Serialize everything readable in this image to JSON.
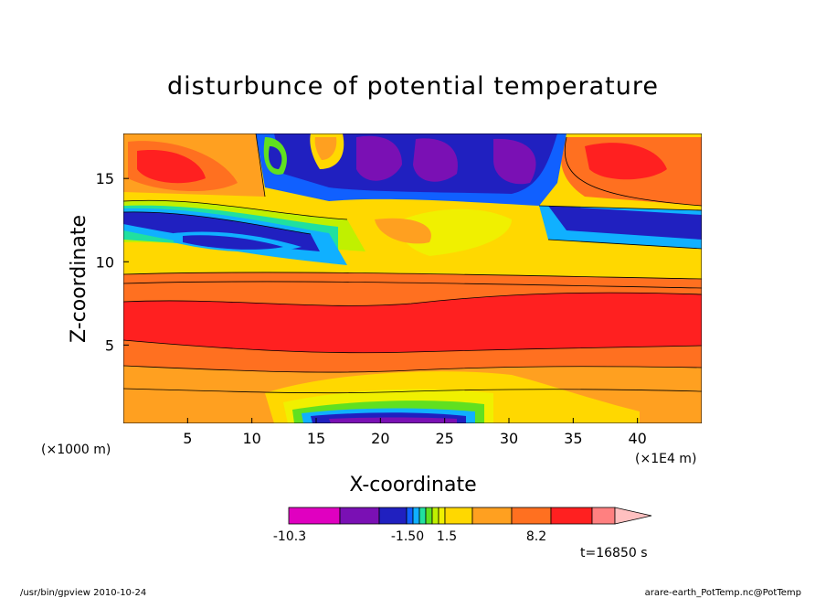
{
  "chart_data": {
    "type": "heatmap",
    "title": "disturbunce of potential temperature",
    "xlabel": "X-coordinate",
    "ylabel": "Z-coordinate",
    "x_unit_left": "(×1000 m)",
    "x_unit_right": "(×1E4 m)",
    "x_ticks": [
      "5",
      "10",
      "15",
      "20",
      "25",
      "30",
      "35",
      "40"
    ],
    "x_tick_values": [
      5,
      10,
      15,
      20,
      25,
      30,
      35,
      40
    ],
    "y_ticks": [
      "5",
      "10",
      "15"
    ],
    "y_tick_values": [
      5,
      10,
      15
    ],
    "xlim": [
      0,
      45
    ],
    "ylim": [
      0.3,
      17.7
    ],
    "colorbar": {
      "labels": [
        "-10.3",
        "-1.50",
        "1.5",
        "8.2"
      ],
      "colors": [
        "#e000c0",
        "#7a10b4",
        "#2020c0",
        "#1060ff",
        "#10b0ff",
        "#20e0a0",
        "#60e020",
        "#c0f000",
        "#f0f000",
        "#ffd800",
        "#ffa020",
        "#ff7020",
        "#ff2020",
        "#ff8080",
        "#ffc0c0"
      ]
    },
    "time_label": "t=16850 s"
  },
  "footer": {
    "left": "/usr/bin/gpview  2010-10-24",
    "right": "arare-earth_PotTemp.nc@PotTemp"
  }
}
